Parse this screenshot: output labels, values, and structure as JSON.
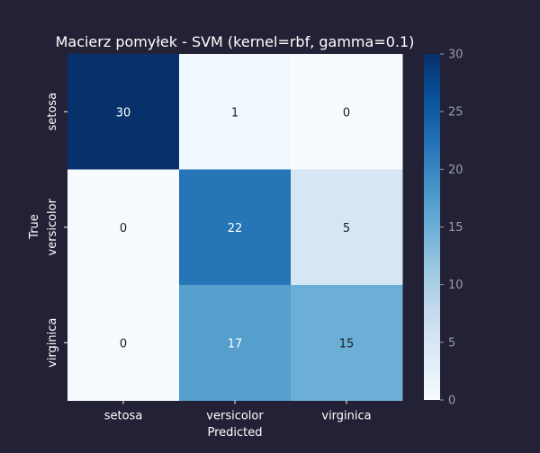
{
  "chart_data": {
    "type": "heatmap",
    "title": "Macierz pomyłek - SVM (kernel=rbf, gamma=0.1)",
    "xlabel": "Predicted",
    "ylabel": "True",
    "x_categories": [
      "setosa",
      "versicolor",
      "virginica"
    ],
    "y_categories": [
      "setosa",
      "versicolor",
      "virginica"
    ],
    "values": [
      [
        30,
        1,
        0
      ],
      [
        0,
        22,
        5
      ],
      [
        0,
        17,
        15
      ]
    ],
    "colormap": "Blues",
    "vmin": 0,
    "vmax": 30,
    "colorbar_ticks": [
      0,
      5,
      10,
      15,
      20,
      25,
      30
    ]
  },
  "colors": {
    "background": "#232136",
    "text": "#ffffff",
    "colorbar_tick_text": "#9a9aae",
    "dark_cell_text": "#ffffff",
    "light_cell_text": "#1f1f1f"
  }
}
